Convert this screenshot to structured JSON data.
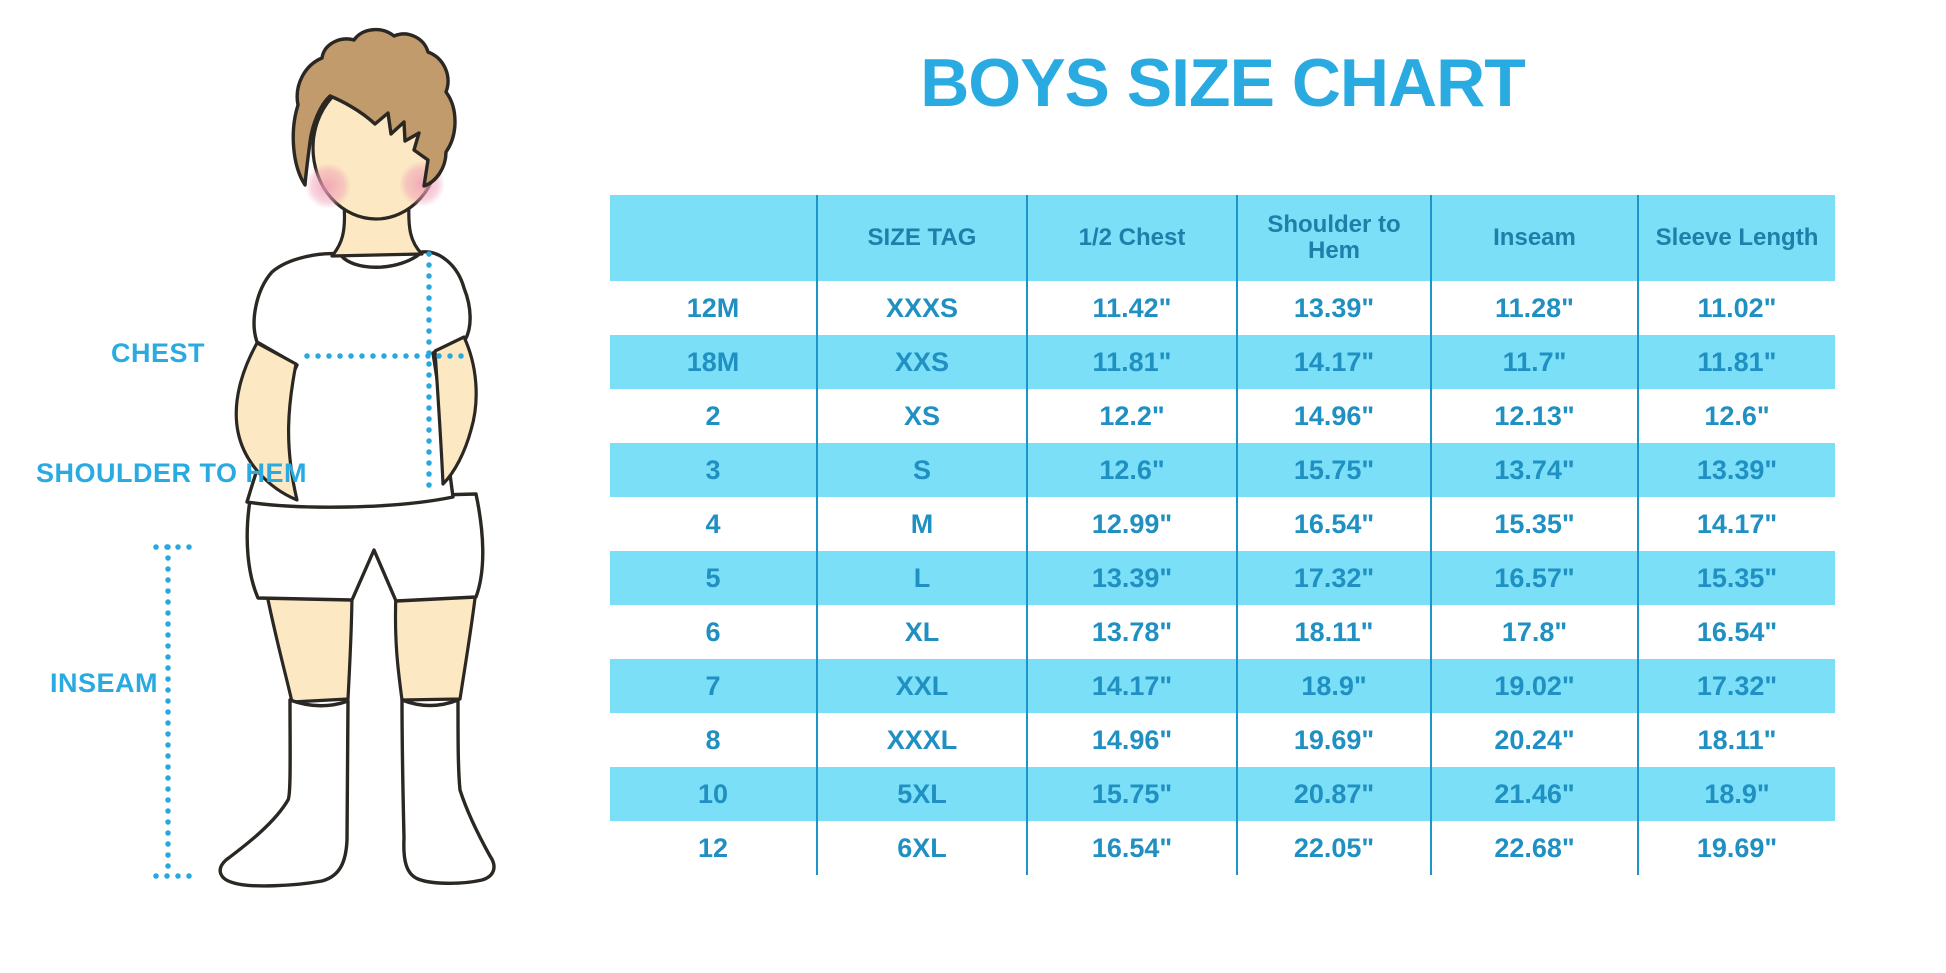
{
  "title": "BOYS SIZE CHART",
  "colors": {
    "title_blue": "#29ABE2",
    "label_blue": "#29ABE2",
    "header_fill": "#7BDFF8",
    "row_alt_fill": "#7BDFF8",
    "divider": "#1C95CB",
    "header_text": "#1E7FA9",
    "cell_text": "#2090C2",
    "dotted_line": "#29A8E0",
    "skin": "#FCE8C3",
    "hair": "#C29B6C",
    "garment": "#FFFFFF",
    "outline": "#2B2722"
  },
  "figure": {
    "labels": {
      "chest": "CHEST",
      "shoulder_to_hem": "SHOULDER TO HEM",
      "inseam": "INSEAM"
    }
  },
  "table": {
    "columns": [
      "",
      "SIZE TAG",
      "1/2 Chest",
      "Shoulder to Hem",
      "Inseam",
      "Sleeve Length"
    ],
    "rows": [
      [
        "12M",
        "XXXS",
        "11.42\"",
        "13.39\"",
        "11.28\"",
        "11.02\""
      ],
      [
        "18M",
        "XXS",
        "11.81\"",
        "14.17\"",
        "11.7\"",
        "11.81\""
      ],
      [
        "2",
        "XS",
        "12.2\"",
        "14.96\"",
        "12.13\"",
        "12.6\""
      ],
      [
        "3",
        "S",
        "12.6\"",
        "15.75\"",
        "13.74\"",
        "13.39\""
      ],
      [
        "4",
        "M",
        "12.99\"",
        "16.54\"",
        "15.35\"",
        "14.17\""
      ],
      [
        "5",
        "L",
        "13.39\"",
        "17.32\"",
        "16.57\"",
        "15.35\""
      ],
      [
        "6",
        "XL",
        "13.78\"",
        "18.11\"",
        "17.8\"",
        "16.54\""
      ],
      [
        "7",
        "XXL",
        "14.17\"",
        "18.9\"",
        "19.02\"",
        "17.32\""
      ],
      [
        "8",
        "XXXL",
        "14.96\"",
        "19.69\"",
        "20.24\"",
        "18.11\""
      ],
      [
        "10",
        "5XL",
        "15.75\"",
        "20.87\"",
        "21.46\"",
        "18.9\""
      ],
      [
        "12",
        "6XL",
        "16.54\"",
        "22.05\"",
        "22.68\"",
        "19.69\""
      ]
    ]
  }
}
